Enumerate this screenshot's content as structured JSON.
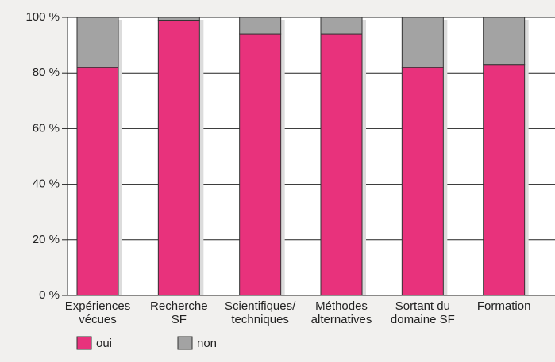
{
  "chart_data": {
    "type": "stacked_bar",
    "categories": [
      [
        "Expériences",
        "vécues"
      ],
      [
        "Recherche",
        "SF"
      ],
      [
        "Scientifiques/",
        "techniques"
      ],
      [
        "Méthodes",
        "alternatives"
      ],
      [
        "Sortant du",
        "domaine SF"
      ],
      [
        "Formation"
      ]
    ],
    "series": [
      {
        "name": "oui",
        "color": "#e8327c",
        "values": [
          82,
          99,
          94,
          94,
          82,
          83
        ]
      },
      {
        "name": "non",
        "color": "#a3a3a3",
        "values": [
          18,
          1,
          6,
          6,
          18,
          17
        ]
      }
    ],
    "ylim": [
      0,
      100
    ],
    "yticks": [
      {
        "value": 0,
        "label": "0 %"
      },
      {
        "value": 20,
        "label": "20 %"
      },
      {
        "value": 40,
        "label": "40 %"
      },
      {
        "value": 60,
        "label": "60 %"
      },
      {
        "value": 80,
        "label": "80 %"
      },
      {
        "value": 100,
        "label": "100 %"
      }
    ],
    "grid": true
  }
}
